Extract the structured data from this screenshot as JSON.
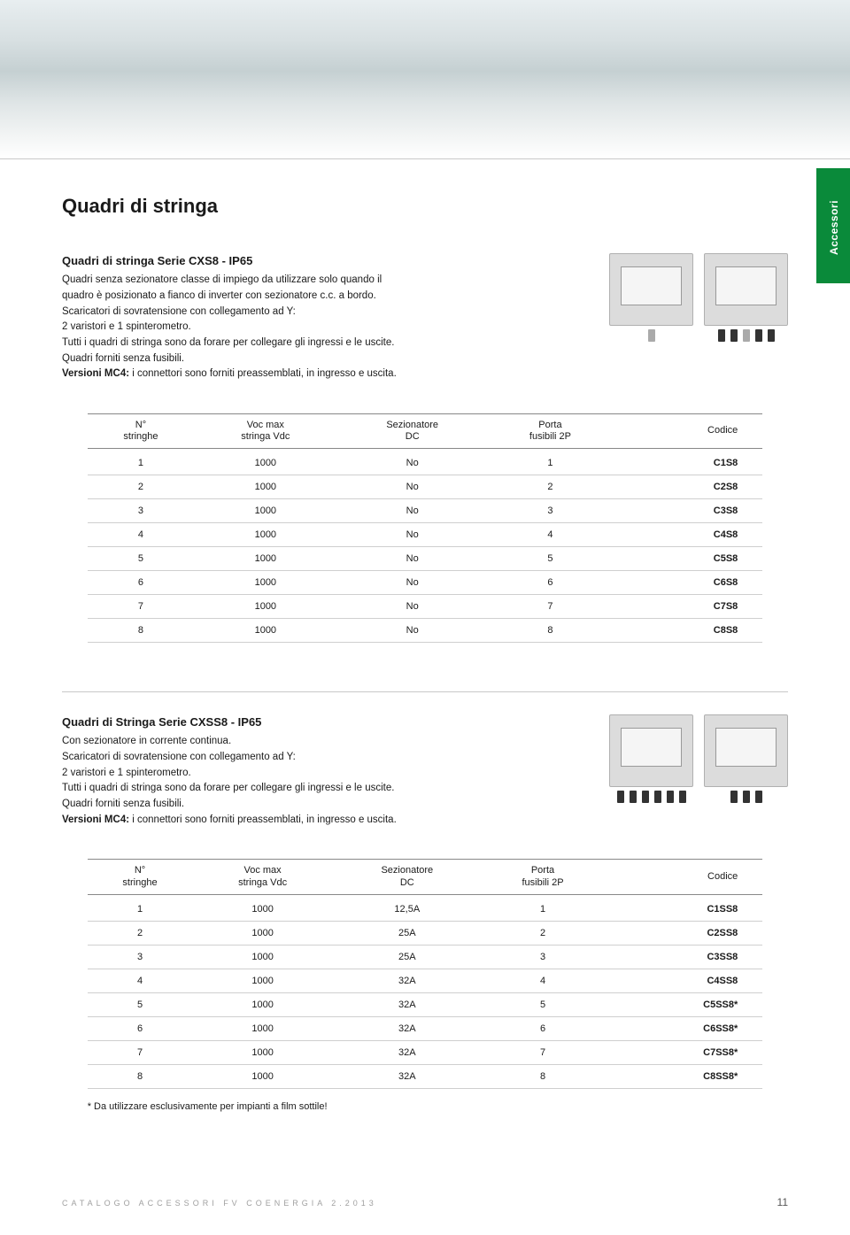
{
  "side_tab": "Accessori",
  "page_title": "Quadri di stringa",
  "section1": {
    "title": "Quadri di stringa Serie CXS8 - IP65",
    "lines": [
      "Quadri senza sezionatore classe di impiego da utilizzare solo quando il",
      "quadro è posizionato a fianco di inverter con sezionatore c.c. a bordo.",
      "Scaricatori di sovratensione con collegamento ad Y:",
      "2 varistori e 1 spinterometro.",
      "Tutti i quadri di stringa sono da forare per collegare gli ingressi e le uscite.",
      "Quadri forniti senza fusibili."
    ],
    "mc4_label": "Versioni MC4:",
    "mc4_rest": " i connettori sono forniti preassemblati, in ingresso e uscita."
  },
  "table_headers": {
    "col1_line1": "N°",
    "col1_line2": "stringhe",
    "col2_line1": "Voc max",
    "col2_line2": "stringa Vdc",
    "col3_line1": "Sezionatore",
    "col3_line2": "DC",
    "col4_line1": "Porta",
    "col4_line2": "fusibili 2P",
    "col5": "Codice"
  },
  "table1_rows": [
    {
      "n": "1",
      "voc": "1000",
      "sez": "No",
      "porta": "1",
      "code": "C1S8"
    },
    {
      "n": "2",
      "voc": "1000",
      "sez": "No",
      "porta": "2",
      "code": "C2S8"
    },
    {
      "n": "3",
      "voc": "1000",
      "sez": "No",
      "porta": "3",
      "code": "C3S8"
    },
    {
      "n": "4",
      "voc": "1000",
      "sez": "No",
      "porta": "4",
      "code": "C4S8"
    },
    {
      "n": "5",
      "voc": "1000",
      "sez": "No",
      "porta": "5",
      "code": "C5S8"
    },
    {
      "n": "6",
      "voc": "1000",
      "sez": "No",
      "porta": "6",
      "code": "C6S8"
    },
    {
      "n": "7",
      "voc": "1000",
      "sez": "No",
      "porta": "7",
      "code": "C7S8"
    },
    {
      "n": "8",
      "voc": "1000",
      "sez": "No",
      "porta": "8",
      "code": "C8S8"
    }
  ],
  "section2": {
    "title": "Quadri di Stringa Serie CXSS8 - IP65",
    "lines": [
      "Con sezionatore in corrente continua.",
      "Scaricatori di sovratensione con collegamento ad Y:",
      "2 varistori e 1 spinterometro.",
      "Tutti i quadri di stringa sono da forare per collegare gli ingressi e le uscite.",
      "Quadri forniti senza fusibili."
    ],
    "mc4_label": "Versioni MC4:",
    "mc4_rest": " i connettori sono forniti preassemblati, in ingresso e uscita."
  },
  "table2_rows": [
    {
      "n": "1",
      "voc": "1000",
      "sez": "12,5A",
      "porta": "1",
      "code": "C1SS8"
    },
    {
      "n": "2",
      "voc": "1000",
      "sez": "25A",
      "porta": "2",
      "code": "C2SS8"
    },
    {
      "n": "3",
      "voc": "1000",
      "sez": "25A",
      "porta": "3",
      "code": "C3SS8"
    },
    {
      "n": "4",
      "voc": "1000",
      "sez": "32A",
      "porta": "4",
      "code": "C4SS8"
    },
    {
      "n": "5",
      "voc": "1000",
      "sez": "32A",
      "porta": "5",
      "code": "C5SS8*"
    },
    {
      "n": "6",
      "voc": "1000",
      "sez": "32A",
      "porta": "6",
      "code": "C6SS8*"
    },
    {
      "n": "7",
      "voc": "1000",
      "sez": "32A",
      "porta": "7",
      "code": "C7SS8*"
    },
    {
      "n": "8",
      "voc": "1000",
      "sez": "32A",
      "porta": "8",
      "code": "C8SS8*"
    }
  ],
  "footnote": "* Da utilizzare esclusivamente per impianti a film sottile!",
  "footer_left": "CATALOGO ACCESSORI FV COENERGIA 2.2013",
  "footer_page": "11",
  "colors": {
    "accent_green": "#0a8a3a",
    "rule_gray": "#c8c8c8",
    "text": "#1a1a1a"
  }
}
